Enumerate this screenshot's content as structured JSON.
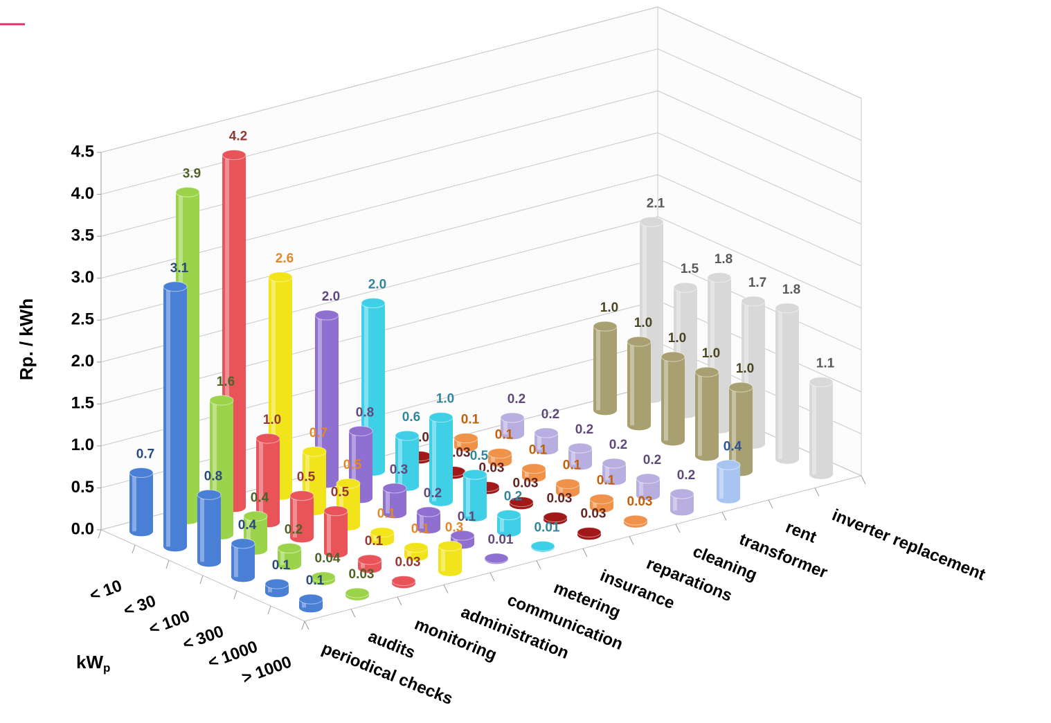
{
  "chart_data": {
    "type": "bar3d",
    "y_label": "Rp. / kWh",
    "z_label": "kW",
    "z_label_sub": "p",
    "categories": [
      "< 10",
      "< 30",
      "< 100",
      "< 300",
      "< 1000",
      "> 1000"
    ],
    "series": [
      {
        "name": "periodical checks",
        "color": "#4a7fd6",
        "label_color": "#2a4a7a",
        "values": [
          0.7,
          3.1,
          0.8,
          0.4,
          0.1,
          0.1
        ],
        "value_labels": [
          "0.7",
          "3.1",
          "0.8",
          "0.4",
          "0.1",
          "0.1"
        ]
      },
      {
        "name": "audits",
        "color": "#9bd34a",
        "label_color": "#4f6228",
        "values": [
          3.9,
          1.6,
          0.4,
          0.2,
          0.04,
          0.03
        ],
        "value_labels": [
          "3.9",
          "1.6",
          "0.4",
          "0.2",
          "0.04",
          "0.03"
        ]
      },
      {
        "name": "monitoring",
        "color": "#e8545a",
        "label_color": "#953735",
        "values": [
          4.2,
          1.0,
          0.5,
          0.5,
          0.1,
          0.03
        ],
        "value_labels": [
          "4.2",
          "1.0",
          "0.5",
          "0.5",
          "0.1",
          "0.03"
        ]
      },
      {
        "name": "administration",
        "color": "#f2e41a",
        "label_color": "#e2882a",
        "values": [
          2.6,
          0.7,
          0.5,
          0.1,
          0.1,
          0.3
        ],
        "value_labels": [
          "2.6",
          "0.7",
          "0.5",
          "0.1",
          "0.1",
          "0.3"
        ]
      },
      {
        "name": "communication",
        "color": "#8f6fcf",
        "label_color": "#60497a",
        "values": [
          2.0,
          0.8,
          0.3,
          0.2,
          0.1,
          0.01
        ],
        "value_labels": [
          "2.0",
          "0.8",
          "0.3",
          "0.2",
          "0.1",
          "0.01"
        ]
      },
      {
        "name": "metering",
        "color": "#3fd0e8",
        "label_color": "#31859c",
        "values": [
          2.0,
          0.6,
          1.0,
          0.5,
          0.2,
          0.01
        ],
        "value_labels": [
          "2.0",
          "0.6",
          "1.0",
          "0.5",
          "0.2",
          "0.01"
        ]
      },
      {
        "name": "insurance",
        "color": "#a01818",
        "label_color": "#632523",
        "values": [
          0.03,
          0.03,
          0.03,
          0.03,
          0.03,
          0.03
        ],
        "value_labels": [
          "0.03",
          "0.03",
          "0.03",
          "0.03",
          "0.03",
          "0.03"
        ]
      },
      {
        "name": "reparations",
        "color": "#f0924a",
        "label_color": "#c0610a",
        "values": [
          0.1,
          0.1,
          0.1,
          0.1,
          0.1,
          0.03
        ],
        "value_labels": [
          "0.1",
          "0.1",
          "0.1",
          "0.1",
          "0.1",
          "0.03"
        ]
      },
      {
        "name": "cleaning",
        "color": "#b8aee0",
        "label_color": "#60497a",
        "values": [
          0.2,
          0.2,
          0.2,
          0.2,
          0.2,
          0.2
        ],
        "value_labels": [
          "0.2",
          "0.2",
          "0.2",
          "0.2",
          "0.2",
          "0.2"
        ]
      },
      {
        "name": "transformer",
        "color": "#a8c4f0",
        "label_color": "#2f5597",
        "values": [
          null,
          null,
          null,
          null,
          null,
          0.4
        ],
        "value_labels": [
          null,
          null,
          null,
          null,
          null,
          "0.4"
        ]
      },
      {
        "name": "rent",
        "color": "#a8a070",
        "label_color": "#4a4520",
        "values": [
          1.0,
          1.0,
          1.0,
          1.0,
          1.0,
          null
        ],
        "value_labels": [
          "1.0",
          "1.0",
          "1.0",
          "1.0",
          "1.0",
          null
        ]
      },
      {
        "name": "inverter replacement",
        "color": "#d8d8d8",
        "label_color": "#595959",
        "values": [
          2.1,
          1.5,
          1.8,
          1.7,
          1.8,
          1.1
        ],
        "value_labels": [
          "2.1",
          "1.5",
          "1.8",
          "1.7",
          "1.8",
          "1.1"
        ]
      }
    ],
    "ylim": [
      0,
      4.5
    ],
    "yticks": [
      {
        "value": 0,
        "label": "0.0"
      },
      {
        "value": 0.5,
        "label": "0.5"
      },
      {
        "value": 1,
        "label": "1.0"
      },
      {
        "value": 1.5,
        "label": "1.5"
      },
      {
        "value": 2,
        "label": "2.0"
      },
      {
        "value": 2.5,
        "label": "2.5"
      },
      {
        "value": 3,
        "label": "3.0"
      },
      {
        "value": 3.5,
        "label": "3.5"
      },
      {
        "value": 4,
        "label": "4.0"
      },
      {
        "value": 4.5,
        "label": "4.5"
      }
    ],
    "grid": true
  }
}
